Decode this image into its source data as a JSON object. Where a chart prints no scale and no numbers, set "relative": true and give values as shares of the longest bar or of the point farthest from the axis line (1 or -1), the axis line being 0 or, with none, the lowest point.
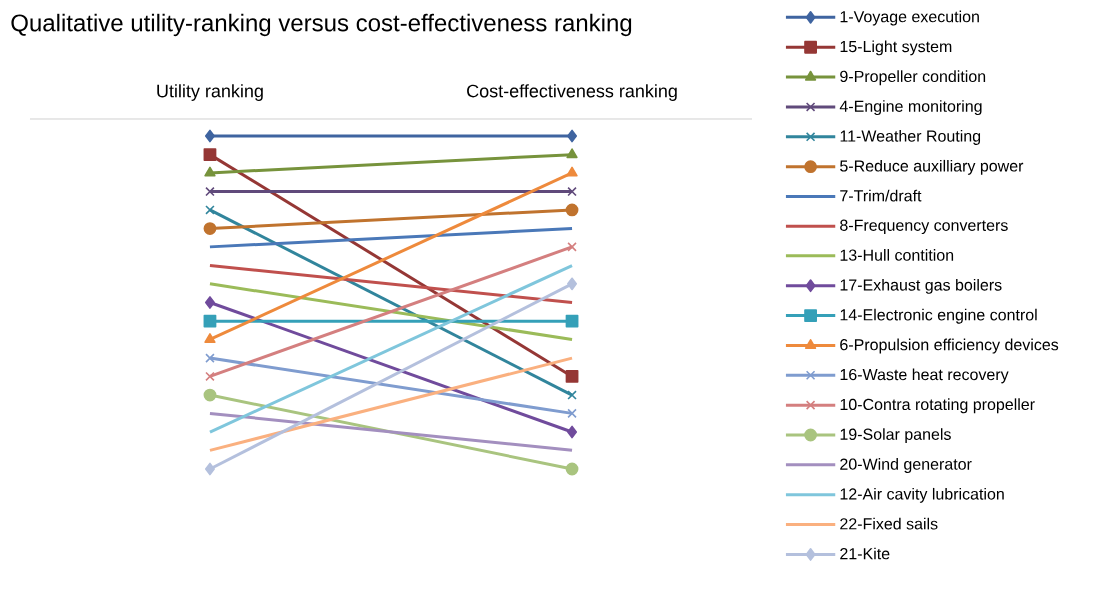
{
  "chart_data": {
    "type": "line",
    "title": "Qualitative utility-ranking versus cost-effectiveness ranking",
    "relative": true,
    "legend": "right",
    "categories": [
      "Utility ranking",
      "Cost-effectiveness ranking"
    ],
    "series": [
      {
        "name": "1-Voyage execution",
        "color": "#3f64a0",
        "marker": "diamond",
        "values": [
          1,
          1
        ]
      },
      {
        "name": "15-Light system",
        "color": "#953735",
        "marker": "square",
        "values": [
          0.944,
          0.278
        ]
      },
      {
        "name": "9-Propeller condition",
        "color": "#77933c",
        "marker": "triangle",
        "values": [
          0.889,
          0.944
        ]
      },
      {
        "name": "4-Engine monitoring",
        "color": "#604a7b",
        "marker": "cross",
        "values": [
          0.833,
          0.833
        ]
      },
      {
        "name": "11-Weather Routing",
        "color": "#31859c",
        "marker": "cross",
        "values": [
          0.778,
          0.222
        ]
      },
      {
        "name": "5-Reduce auxilliary power",
        "color": "#c0732e",
        "marker": "circle",
        "values": [
          0.722,
          0.778
        ]
      },
      {
        "name": "7-Trim/draft",
        "color": "#4a78b8",
        "marker": "none",
        "values": [
          0.667,
          0.722
        ]
      },
      {
        "name": "8-Frequency converters",
        "color": "#c0504d",
        "marker": "none",
        "values": [
          0.611,
          0.5
        ]
      },
      {
        "name": "13-Hull contition",
        "color": "#9bbb59",
        "marker": "none",
        "values": [
          0.556,
          0.389
        ]
      },
      {
        "name": "17-Exhaust gas boilers",
        "color": "#704b9c",
        "marker": "diamond",
        "values": [
          0.5,
          0.111
        ]
      },
      {
        "name": "14-Electronic engine control",
        "color": "#35a0b8",
        "marker": "square",
        "values": [
          0.444,
          0.444
        ]
      },
      {
        "name": "6-Propulsion efficiency devices",
        "color": "#ee8a3c",
        "marker": "triangle",
        "values": [
          0.389,
          0.889
        ]
      },
      {
        "name": "16-Waste heat recovery",
        "color": "#7f9ccf",
        "marker": "cross",
        "values": [
          0.333,
          0.167
        ]
      },
      {
        "name": "10-Contra rotating propeller",
        "color": "#d47f7f",
        "marker": "cross",
        "values": [
          0.278,
          0.667
        ]
      },
      {
        "name": "19-Solar panels",
        "color": "#a9c47f",
        "marker": "circle",
        "values": [
          0.222,
          0
        ]
      },
      {
        "name": "20-Wind generator",
        "color": "#a38fbf",
        "marker": "none",
        "values": [
          0.167,
          0.056
        ]
      },
      {
        "name": "12-Air cavity lubrication",
        "color": "#7fc6dc",
        "marker": "none",
        "values": [
          0.111,
          0.611
        ]
      },
      {
        "name": "22-Fixed sails",
        "color": "#fab07f",
        "marker": "none",
        "values": [
          0.056,
          0.333
        ]
      },
      {
        "name": "21-Kite",
        "color": "#b4c0dd",
        "marker": "diamond",
        "values": [
          0,
          0.556
        ]
      }
    ]
  }
}
